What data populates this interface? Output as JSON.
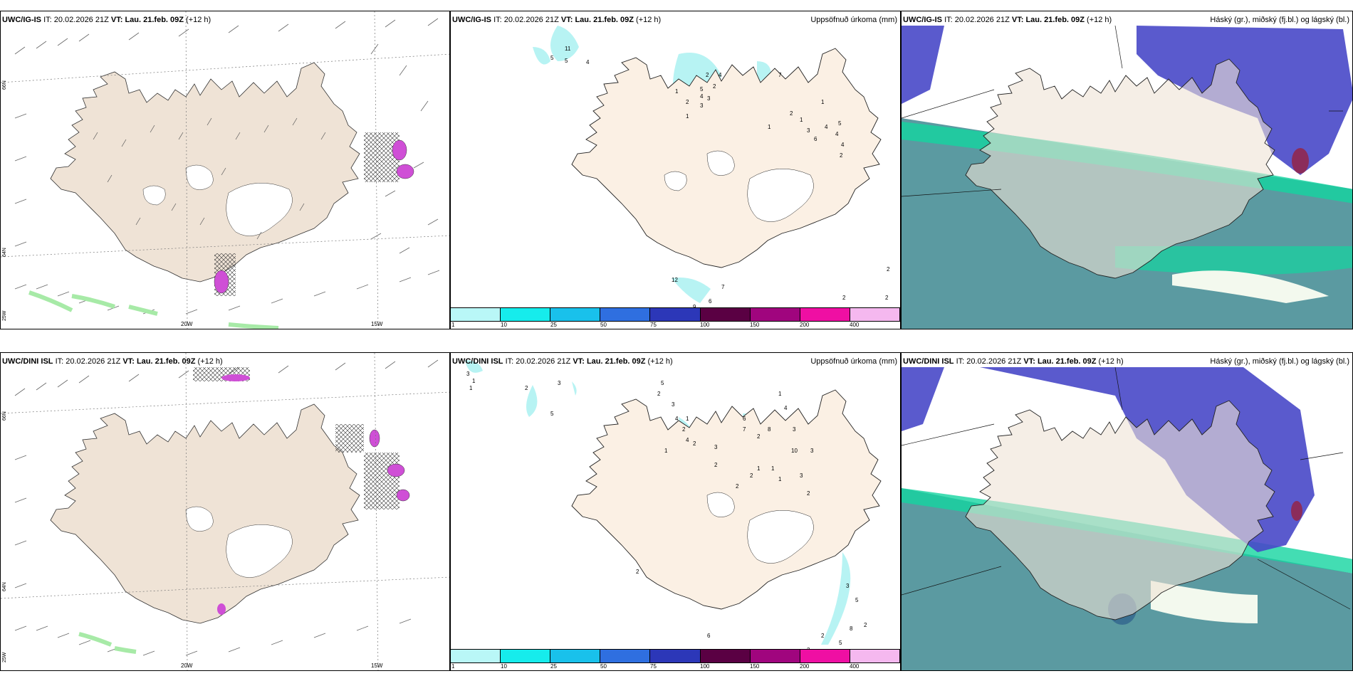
{
  "panels": [
    {
      "id": "p1",
      "model": "UWC/IG-IS",
      "it_label": "IT:",
      "it": "20.02.2026 21Z",
      "vt_label": "VT:",
      "vt": "Lau. 21.feb. 09Z",
      "lead": "(+12 h)",
      "right_title": ""
    },
    {
      "id": "p2",
      "model": "UWC/IG-IS",
      "it_label": "IT:",
      "it": "20.02.2026 21Z",
      "vt_label": "VT:",
      "vt": "Lau. 21.feb. 09Z",
      "lead": "(+12 h)",
      "right_title": "Uppsöfnuð úrkoma (mm)"
    },
    {
      "id": "p3",
      "model": "UWC/IG-IS",
      "it_label": "IT:",
      "it": "20.02.2026 21Z",
      "vt_label": "VT:",
      "vt": "Lau. 21.feb. 09Z",
      "lead": "(+12 h)",
      "right_title": "Háský (gr.), miðský (fj.bl.) og lágský (bl.)"
    },
    {
      "id": "p4",
      "model": "UWC/DINI ISL",
      "it_label": "IT:",
      "it": "20.02.2026 21Z",
      "vt_label": "VT:",
      "vt": "Lau. 21.feb. 09Z",
      "lead": "(+12 h)",
      "right_title": ""
    },
    {
      "id": "p5",
      "model": "UWC/DINI ISL",
      "it_label": "IT:",
      "it": "20.02.2026 21Z",
      "vt_label": "VT:",
      "vt": "Lau. 21.feb. 09Z",
      "lead": "(+12 h)",
      "right_title": "Uppsöfnuð úrkoma (mm)"
    },
    {
      "id": "p6",
      "model": "UWC/DINI ISL",
      "it_label": "IT:",
      "it": "20.02.2026 21Z",
      "vt_label": "VT:",
      "vt": "Lau. 21.feb. 09Z",
      "lead": "(+12 h)",
      "right_title": "Háský (gr.), miðský (fj.bl.) og lágský (bl.)"
    }
  ],
  "axis_labels": {
    "lat_66": "66N",
    "lat_64": "64N",
    "lon_25": "25W",
    "lon_20": "20W",
    "lon_15": "15W"
  },
  "colorbar": {
    "labels": [
      "1",
      "10",
      "25",
      "50",
      "75",
      "100",
      "150",
      "200",
      "400"
    ],
    "colors": [
      "#b9f7f7",
      "#16ecec",
      "#19c1eb",
      "#2f6fe0",
      "#2c37b8",
      "#5a0043",
      "#a0057e",
      "#ef0fa3",
      "#f5b8ef"
    ]
  },
  "precip_numbers_top": [
    "11",
    "5",
    "5",
    "4",
    "2",
    "4",
    "7",
    "2",
    "5",
    "4",
    "3",
    "3",
    "1",
    "2",
    "1",
    "1",
    "2",
    "1",
    "3",
    "4",
    "6",
    "5",
    "4",
    "4",
    "2",
    "1",
    "7",
    "6",
    "9",
    "2",
    "2",
    "2",
    "12"
  ],
  "precip_numbers_bottom": [
    "3",
    "1",
    "1",
    "2",
    "3",
    "5",
    "5",
    "2",
    "3",
    "4",
    "1",
    "2",
    "1",
    "4",
    "2",
    "3",
    "2",
    "6",
    "7",
    "2",
    "8",
    "1",
    "4",
    "10",
    "3",
    "3",
    "2",
    "3",
    "1",
    "1",
    "1",
    "2",
    "2",
    "2",
    "3",
    "5",
    "8",
    "2",
    "2",
    "5",
    "3",
    "6"
  ],
  "colors": {
    "land": "#efe3d6",
    "land_p2": "#fbf0e4",
    "sea": "#ffffff",
    "cyan": "#b7f3f3",
    "magenta": "#cf4fd6",
    "cloud_high": "#4848c8",
    "cloud_mid": "#2d7d86",
    "cloud_low": "#14d4a0"
  }
}
